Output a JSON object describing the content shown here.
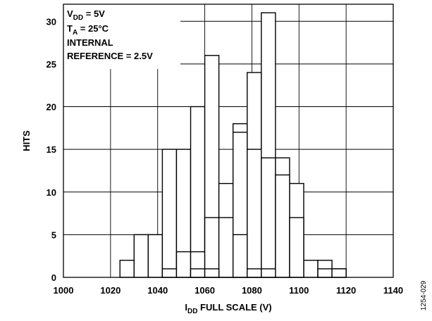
{
  "chart_data": {
    "type": "bar",
    "subtype": "histogram-overlay",
    "xlabel_main": "I",
    "xlabel_sub": "DD",
    "xlabel_rest": " FULL SCALE (V)",
    "ylabel": "HITS",
    "xlim": [
      1000,
      1140
    ],
    "ylim": [
      0,
      32
    ],
    "xticks": [
      "1000",
      "1020",
      "1040",
      "1060",
      "1080",
      "1100",
      "1120",
      "1140"
    ],
    "yticks": [
      "0",
      "5",
      "10",
      "15",
      "20",
      "25",
      "30"
    ],
    "grid": true,
    "bin_width": 6,
    "series": [
      {
        "bars": [
          {
            "x": 1024,
            "y": 2
          },
          {
            "x": 1030,
            "y": 5
          },
          {
            "x": 1036,
            "y": 5
          },
          {
            "x": 1042,
            "y": 15
          },
          {
            "x": 1048,
            "y": 15
          },
          {
            "x": 1054,
            "y": 20
          },
          {
            "x": 1060,
            "y": 26
          },
          {
            "x": 1066,
            "y": 11
          },
          {
            "x": 1072,
            "y": 18
          },
          {
            "x": 1078,
            "y": 24
          },
          {
            "x": 1084,
            "y": 31
          },
          {
            "x": 1090,
            "y": 14
          },
          {
            "x": 1096,
            "y": 11
          },
          {
            "x": 1102,
            "y": 2
          },
          {
            "x": 1108,
            "y": 2
          },
          {
            "x": 1114,
            "y": 1
          }
        ]
      },
      {
        "bars": [
          {
            "x": 1042,
            "y": 1
          },
          {
            "x": 1048,
            "y": 3
          },
          {
            "x": 1054,
            "y": 3
          },
          {
            "x": 1060,
            "y": 7
          },
          {
            "x": 1066,
            "y": 7
          },
          {
            "x": 1072,
            "y": 17
          },
          {
            "x": 1078,
            "y": 15
          },
          {
            "x": 1084,
            "y": 14
          },
          {
            "x": 1090,
            "y": 12
          },
          {
            "x": 1096,
            "y": 7
          },
          {
            "x": 1108,
            "y": 1
          },
          {
            "x": 1114,
            "y": 1
          }
        ]
      },
      {
        "bars": [
          {
            "x": 1054,
            "y": 1
          },
          {
            "x": 1060,
            "y": 1
          },
          {
            "x": 1072,
            "y": 5
          },
          {
            "x": 1078,
            "y": 1
          },
          {
            "x": 1084,
            "y": 1
          }
        ]
      }
    ],
    "annotation": {
      "line1_main": "V",
      "line1_sub": "DD",
      "line1_rest": " = 5V",
      "line2_main": "T",
      "line2_sub": "A",
      "line2_rest": " = 25°C",
      "line3": "INTERNAL",
      "line4": "REFERENCE = 2.5V"
    },
    "figure_id": "1254-029"
  }
}
